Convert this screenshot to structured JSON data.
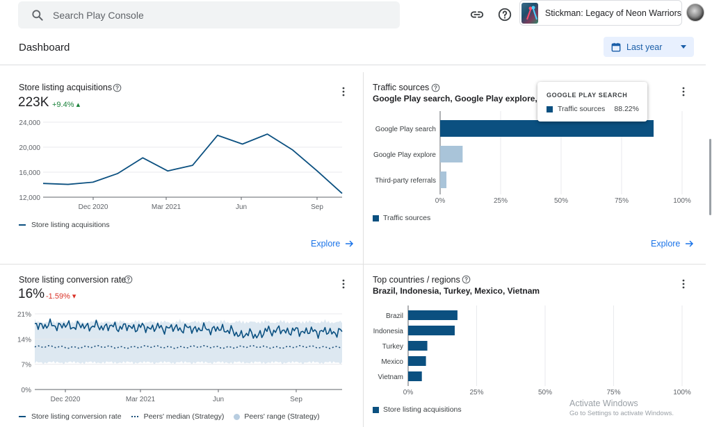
{
  "search": {
    "placeholder": "Search Play Console"
  },
  "app": {
    "name": "Stickman: Legacy of Neon Warriors"
  },
  "header": {
    "title": "Dashboard",
    "date_range": "Last year"
  },
  "cards": {
    "acquisitions": {
      "title": "Store listing acquisitions",
      "value": "223K",
      "delta": "+9.4%",
      "legend": "Store listing acquisitions",
      "explore": "Explore"
    },
    "traffic": {
      "title": "Traffic sources",
      "subtitle": "Google Play search, Google Play explore, T",
      "legend": "Traffic sources",
      "explore": "Explore",
      "tooltip": {
        "title": "GOOGLE PLAY SEARCH",
        "series": "Traffic sources",
        "value": "88.22%"
      }
    },
    "conversion": {
      "title": "Store listing conversion rate",
      "value": "16%",
      "delta": "-1.59%",
      "legend": [
        "Store listing conversion rate",
        "Peers' median (Strategy)",
        "Peers' range (Strategy)"
      ]
    },
    "countries": {
      "title": "Top countries / regions",
      "subtitle": "Brazil, Indonesia, Turkey, Mexico, Vietnam",
      "legend": "Store listing acquisitions"
    }
  },
  "chart_data": [
    {
      "type": "line",
      "id": "acquisitions",
      "x_ticks": [
        "Dec 2020",
        "Mar 2021",
        "Jun",
        "Sep"
      ],
      "y_ticks": [
        "24,000",
        "20,000",
        "16,000",
        "12,000"
      ],
      "ylim": [
        12000,
        24000
      ],
      "series": [
        {
          "name": "Store listing acquisitions",
          "values": [
            14200,
            14050,
            14400,
            15800,
            18300,
            16200,
            17100,
            21900,
            20500,
            22100,
            19600,
            16200,
            12600
          ]
        }
      ],
      "colors": {
        "line": "#0b5080"
      }
    },
    {
      "type": "bar",
      "id": "traffic",
      "orientation": "horizontal",
      "categories": [
        "Google Play search",
        "Google Play explore",
        "Third-party referrals"
      ],
      "values": [
        88.22,
        9.3,
        2.6
      ],
      "x_ticks": [
        "0%",
        "25%",
        "50%",
        "75%",
        "100%"
      ],
      "xlim": [
        0,
        100
      ],
      "colors": {
        "primary": "#0b5080",
        "secondary": "#a9c4d9"
      }
    },
    {
      "type": "line",
      "id": "conversion",
      "x_ticks": [
        "Dec 2020",
        "Mar 2021",
        "Jun",
        "Sep"
      ],
      "y_ticks": [
        "21%",
        "14%",
        "7%",
        "0%"
      ],
      "ylim": [
        0,
        21
      ],
      "series": [
        {
          "name": "Store listing conversion rate",
          "mean": 17,
          "amplitude": 1.6
        },
        {
          "name": "Peers' median (Strategy)",
          "mean": 11.8
        },
        {
          "name": "Peers' range (Strategy)",
          "low": 6.8,
          "high": 19.6
        }
      ],
      "colors": {
        "line": "#0b5080",
        "median": "#1b4f7a",
        "range": "#dde8f1"
      }
    },
    {
      "type": "bar",
      "id": "countries",
      "orientation": "horizontal",
      "categories": [
        "Brazil",
        "Indonesia",
        "Turkey",
        "Mexico",
        "Vietnam"
      ],
      "values": [
        18,
        17,
        7,
        6.5,
        5
      ],
      "x_ticks": [
        "0%",
        "25%",
        "50%",
        "75%",
        "100%"
      ],
      "xlim": [
        0,
        100
      ],
      "colors": {
        "primary": "#0b5080"
      }
    }
  ],
  "watermark": {
    "line1": "Activate Windows",
    "line2": "Go to Settings to activate Windows."
  }
}
